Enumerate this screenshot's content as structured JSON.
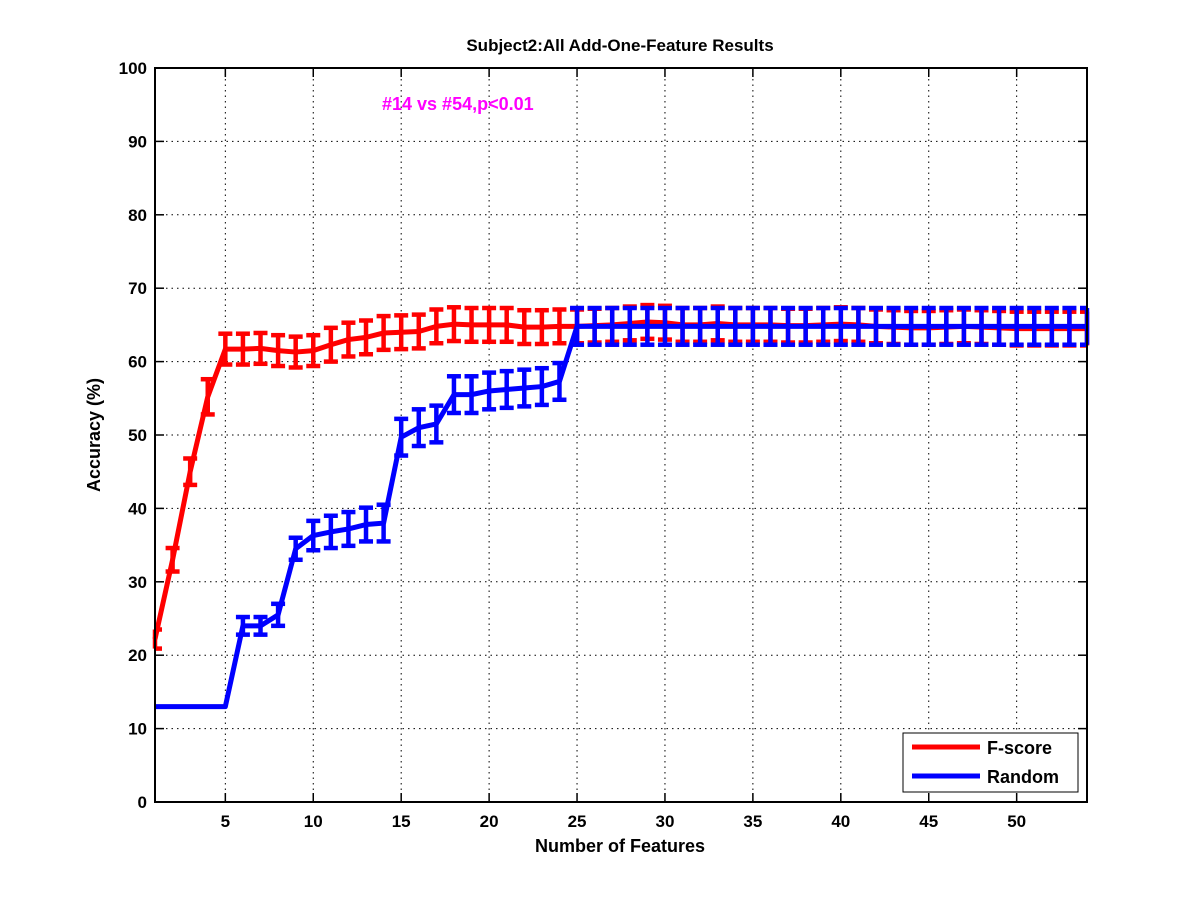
{
  "chart_data": {
    "type": "line",
    "title": "Subject2:All Add-One-Feature Results",
    "xlabel": "Number of Features",
    "ylabel": "Accuracy (%)",
    "annotation": "#14 vs #54,p<0.01",
    "xlim": [
      1,
      54
    ],
    "ylim": [
      0,
      100
    ],
    "xticks": [
      5,
      10,
      15,
      20,
      25,
      30,
      35,
      40,
      45,
      50
    ],
    "yticks": [
      0,
      10,
      20,
      30,
      40,
      50,
      60,
      70,
      80,
      90,
      100
    ],
    "grid": true,
    "legend_position": "bottom-right",
    "series": [
      {
        "name": "F-score",
        "color": "#ff0000",
        "x": [
          1,
          2,
          3,
          4,
          5,
          6,
          7,
          8,
          9,
          10,
          11,
          12,
          13,
          14,
          15,
          16,
          17,
          18,
          19,
          20,
          21,
          22,
          23,
          24,
          25,
          26,
          27,
          28,
          29,
          30,
          31,
          32,
          33,
          34,
          35,
          36,
          37,
          38,
          39,
          40,
          41,
          42,
          43,
          44,
          45,
          46,
          47,
          48,
          49,
          50,
          51,
          52,
          53,
          54
        ],
        "y": [
          22.2,
          33.0,
          45.0,
          55.2,
          61.7,
          61.7,
          61.8,
          61.5,
          61.3,
          61.5,
          62.3,
          63.0,
          63.3,
          63.9,
          64.0,
          64.1,
          64.8,
          65.1,
          65.0,
          65.0,
          65.0,
          64.7,
          64.7,
          64.8,
          64.8,
          64.9,
          65.0,
          65.2,
          65.4,
          65.3,
          65.0,
          65.0,
          65.2,
          65.0,
          65.0,
          65.0,
          64.9,
          64.9,
          65.0,
          65.1,
          65.0,
          64.8,
          64.7,
          64.6,
          64.6,
          64.7,
          64.8,
          64.7,
          64.6,
          64.5,
          64.5,
          64.5,
          64.5,
          64.5
        ],
        "error": [
          1.3,
          1.6,
          1.8,
          2.4,
          2.1,
          2.1,
          2.1,
          2.1,
          2.1,
          2.1,
          2.3,
          2.3,
          2.3,
          2.3,
          2.3,
          2.3,
          2.3,
          2.3,
          2.3,
          2.3,
          2.3,
          2.3,
          2.3,
          2.3,
          2.3,
          2.3,
          2.3,
          2.3,
          2.3,
          2.3,
          2.3,
          2.3,
          2.3,
          2.3,
          2.3,
          2.3,
          2.3,
          2.3,
          2.3,
          2.3,
          2.3,
          2.3,
          2.3,
          2.3,
          2.3,
          2.3,
          2.3,
          2.3,
          2.3,
          2.3,
          2.3,
          2.3,
          2.3,
          2.3
        ]
      },
      {
        "name": "Random",
        "color": "#0000ff",
        "x": [
          1,
          2,
          3,
          4,
          5,
          6,
          7,
          8,
          9,
          10,
          11,
          12,
          13,
          14,
          15,
          16,
          17,
          18,
          19,
          20,
          21,
          22,
          23,
          24,
          25,
          26,
          27,
          28,
          29,
          30,
          31,
          32,
          33,
          34,
          35,
          36,
          37,
          38,
          39,
          40,
          41,
          42,
          43,
          44,
          45,
          46,
          47,
          48,
          49,
          50,
          51,
          52,
          53,
          54
        ],
        "y": [
          13.0,
          13.0,
          13.0,
          13.0,
          13.0,
          24.0,
          24.0,
          25.5,
          34.5,
          36.3,
          36.8,
          37.2,
          37.8,
          38.0,
          49.7,
          51.0,
          51.5,
          55.5,
          55.5,
          56.0,
          56.2,
          56.4,
          56.6,
          57.3,
          64.8,
          64.8,
          64.8,
          64.8,
          64.8,
          64.8,
          64.8,
          64.8,
          64.8,
          64.8,
          64.8,
          64.8,
          64.8,
          64.8,
          64.8,
          64.8,
          64.8,
          64.8,
          64.8,
          64.8,
          64.8,
          64.8,
          64.8,
          64.8,
          64.8,
          64.8,
          64.8,
          64.8,
          64.8,
          64.8
        ],
        "error": [
          0,
          0,
          0,
          0,
          0,
          1.2,
          1.2,
          1.5,
          1.5,
          2.0,
          2.2,
          2.3,
          2.3,
          2.5,
          2.5,
          2.5,
          2.5,
          2.5,
          2.5,
          2.5,
          2.5,
          2.5,
          2.5,
          2.5,
          2.5,
          2.5,
          2.5,
          2.5,
          2.5,
          2.5,
          2.5,
          2.5,
          2.5,
          2.5,
          2.5,
          2.5,
          2.5,
          2.5,
          2.5,
          2.5,
          2.5,
          2.5,
          2.5,
          2.5,
          2.5,
          2.5,
          2.5,
          2.5,
          2.5,
          2.5,
          2.5,
          2.5,
          2.5,
          2.5
        ]
      }
    ]
  }
}
